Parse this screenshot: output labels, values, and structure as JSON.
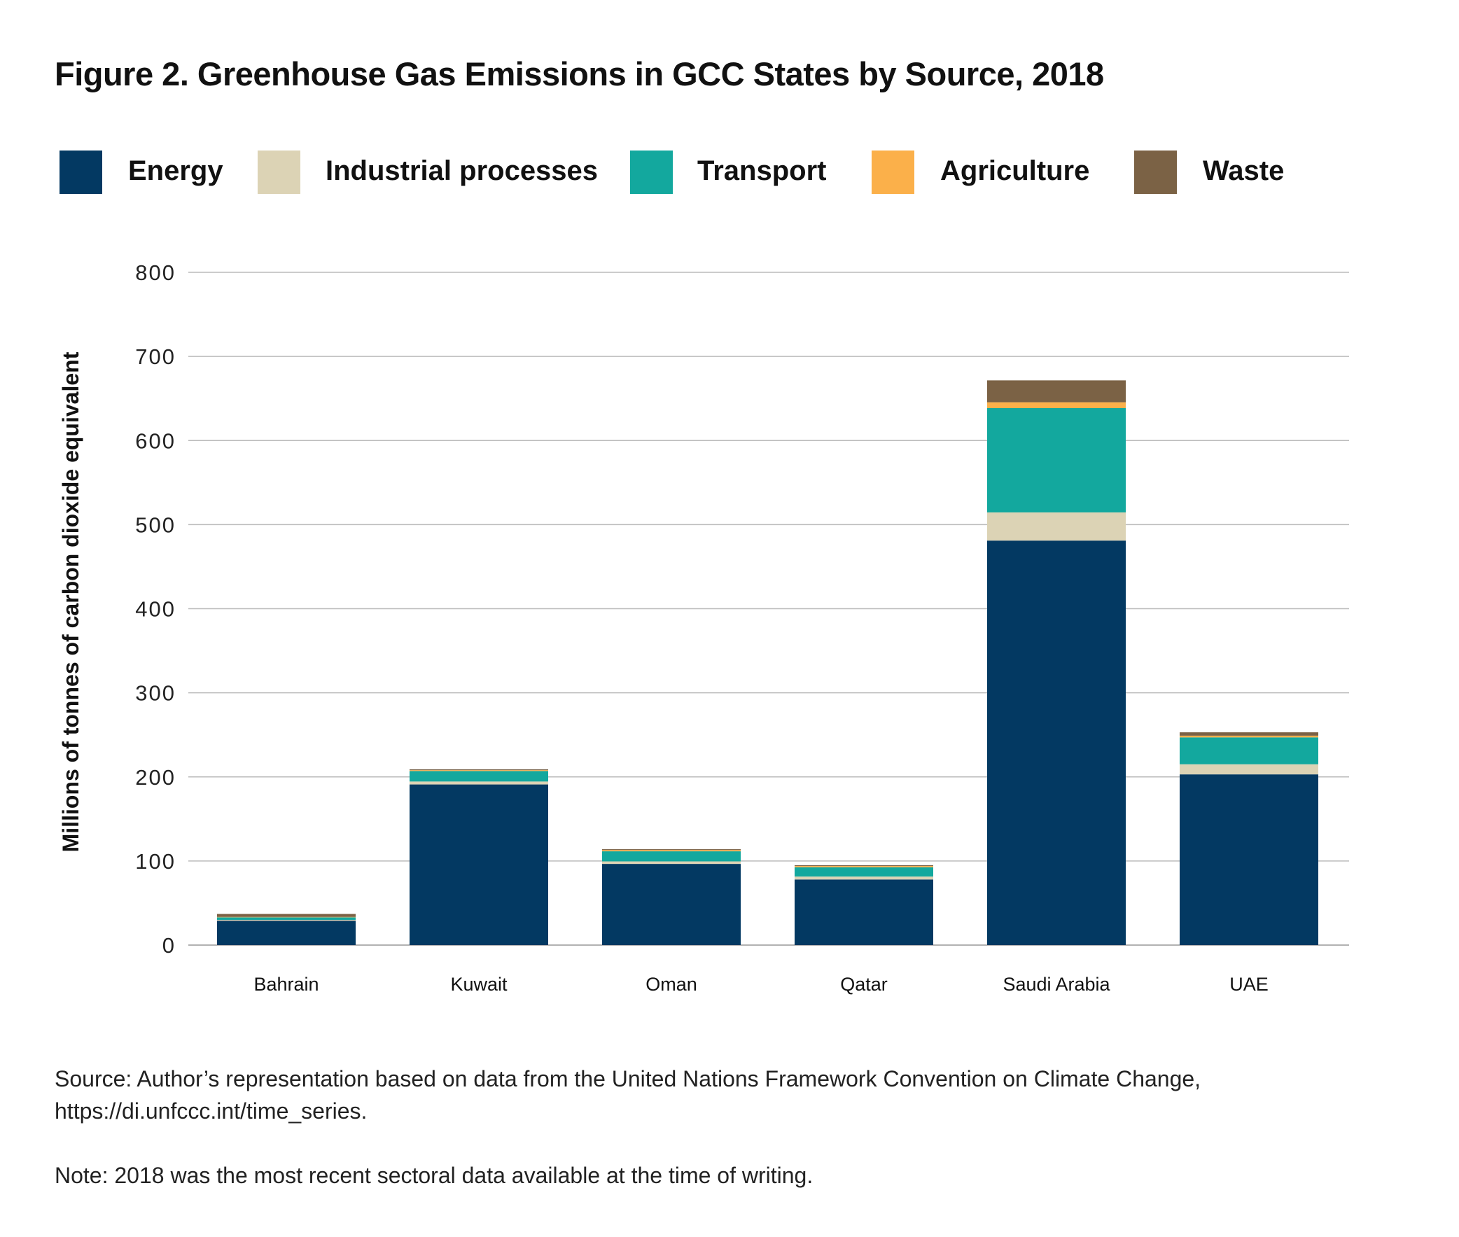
{
  "title": "Figure 2. Greenhouse Gas Emissions in GCC States by Source, 2018",
  "chart_data": {
    "type": "bar",
    "stacked": true,
    "title": "Figure 2. Greenhouse Gas Emissions in GCC States by Source, 2018",
    "xlabel": "",
    "ylabel": "Millions of tonnes of carbon dioxide equivalent",
    "ylim": [
      0,
      800
    ],
    "yticks": [
      "0",
      "100",
      "200",
      "300",
      "400",
      "500",
      "600",
      "700",
      "800"
    ],
    "grid": true,
    "legend_position": "top",
    "categories": [
      "Bahrain",
      "Kuwait",
      "Oman",
      "Qatar",
      "Saudi Arabia",
      "UAE"
    ],
    "series": [
      {
        "name": "Energy",
        "color": "#033962",
        "values": [
          29,
          191,
          96.5,
          78,
          481,
          203
        ]
      },
      {
        "name": "Industrial processes",
        "color": "#dcd3b5",
        "values": [
          1,
          3.5,
          3,
          3.5,
          33.5,
          12
        ]
      },
      {
        "name": "Transport",
        "color": "#13a89e",
        "values": [
          3,
          12.5,
          12,
          11,
          124,
          32
        ]
      },
      {
        "name": "Agriculture",
        "color": "#fbb04a",
        "values": [
          0.5,
          1,
          1.5,
          1.5,
          7,
          2
        ]
      },
      {
        "name": "Waste",
        "color": "#7b6245",
        "values": [
          3.5,
          1,
          1,
          1,
          26,
          4
        ]
      }
    ]
  },
  "footer": {
    "source_line1": "Source: Author’s representation based on data from the United Nations Framework Convention on Climate Change,",
    "source_line2": "https://di.unfccc.int/time_series.",
    "note": "Note: 2018 was the most recent sectoral data available at the time of writing."
  }
}
